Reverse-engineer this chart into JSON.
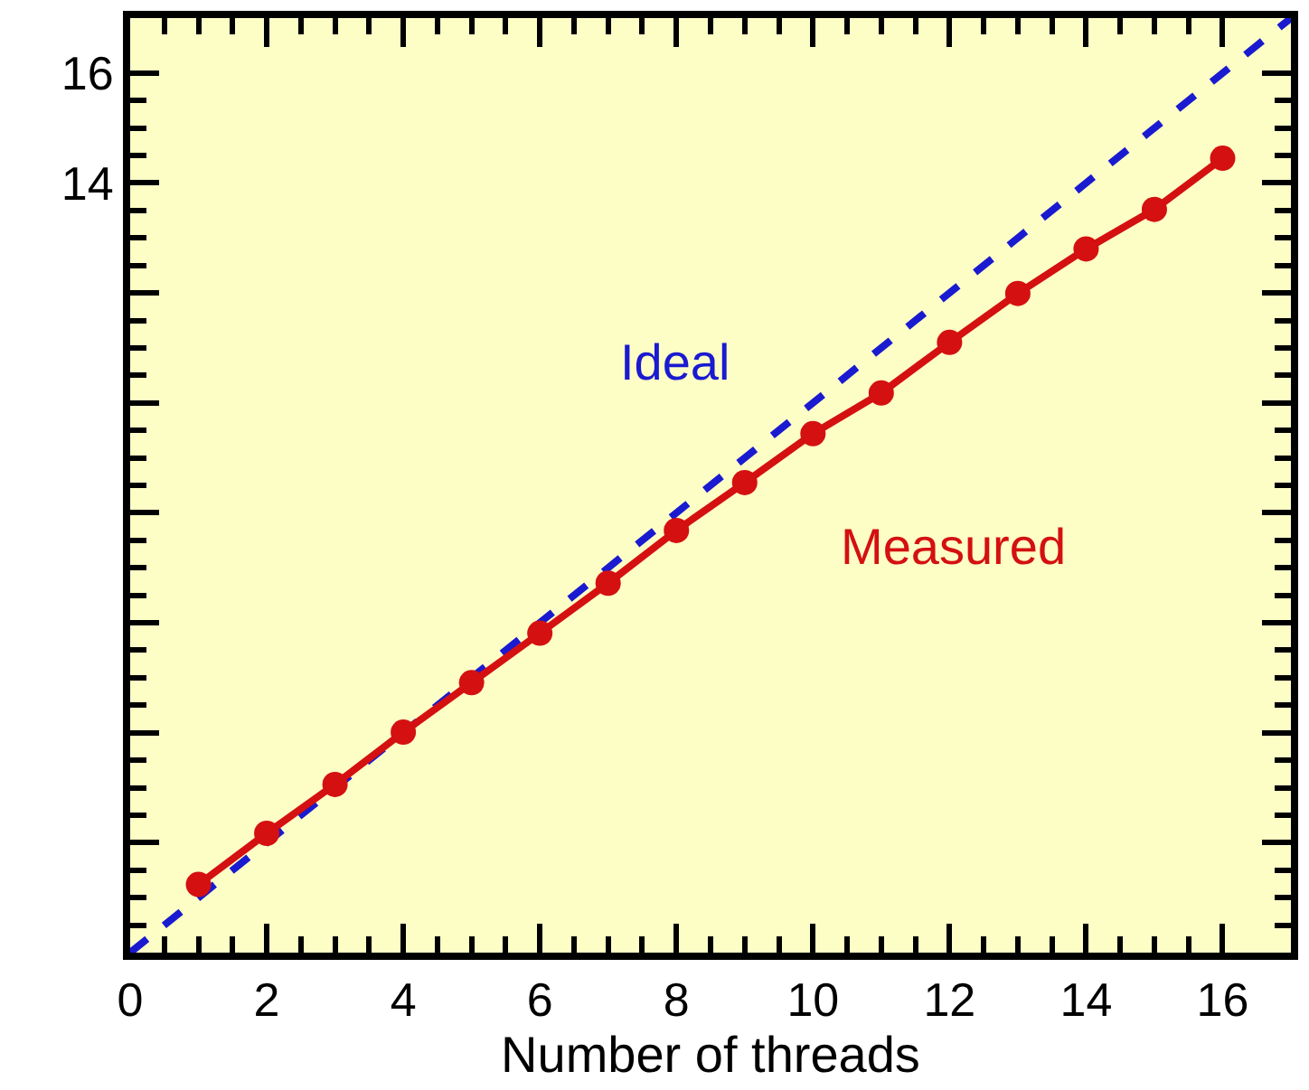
{
  "chart_data": {
    "type": "line",
    "xlabel": "Number of threads",
    "xlim": [
      0,
      17
    ],
    "ylim": [
      0,
      17
    ],
    "xticks": [
      0,
      2,
      4,
      6,
      8,
      10,
      12,
      14,
      16
    ],
    "yticks": [
      {
        "value": 0,
        "label": null
      },
      {
        "value": 2,
        "label": null
      },
      {
        "value": 4,
        "label": null
      },
      {
        "value": 6,
        "label": null
      },
      {
        "value": 8,
        "label": null
      },
      {
        "value": 10,
        "label": null
      },
      {
        "value": 12,
        "label": null
      },
      14,
      16
    ],
    "grid": false,
    "series": [
      {
        "name": "Ideal",
        "color": "#1a1ad0",
        "x": [
          0,
          17
        ],
        "values": [
          0,
          17
        ],
        "marker": "none",
        "line_style": "dashed"
      },
      {
        "name": "Measured",
        "color": "#d41010",
        "x": [
          1,
          2,
          3,
          4,
          5,
          6,
          7,
          8,
          9,
          10,
          11,
          12,
          13,
          14,
          15,
          16
        ],
        "values": [
          1.24,
          2.17,
          3.06,
          4.01,
          4.91,
          5.81,
          6.72,
          7.68,
          8.55,
          9.44,
          10.18,
          11.1,
          11.99,
          12.8,
          13.52,
          14.45
        ],
        "marker": "circle",
        "line_style": "solid"
      }
    ]
  }
}
